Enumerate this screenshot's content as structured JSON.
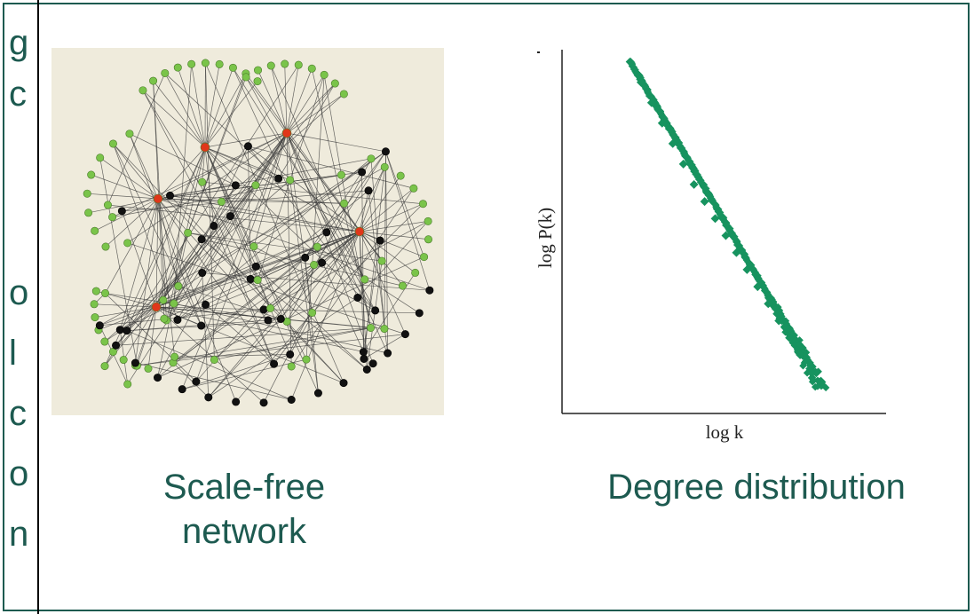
{
  "captions": {
    "network": [
      "Scale-free",
      "network"
    ],
    "distribution": "Degree distribution"
  },
  "edge_fragments": [
    "g",
    "c",
    "o",
    "l",
    "c",
    "o",
    "n"
  ],
  "colors": {
    "frame": "#1d5a50",
    "caption": "#1d5a50",
    "network_bg": "#efebdc",
    "hub_node": "#e0361a",
    "green_node": "#7ac44a",
    "black_node": "#111111",
    "series": "#17935f"
  },
  "chart_data": {
    "type": "scatter",
    "xlabel": "log k",
    "ylabel": "log P(k)",
    "x_scale": "log",
    "y_scale": "log",
    "grid": false,
    "legend": "none",
    "series": [
      {
        "color": "#17935f",
        "trend": "power-law (straight line on log-log axes, negative slope), scatter widening at high k",
        "x": [
          0.05,
          0.1,
          0.15,
          0.2,
          0.25,
          0.3,
          0.35,
          0.4,
          0.45,
          0.5,
          0.55,
          0.6,
          0.65,
          0.7,
          0.75,
          0.8,
          0.85,
          0.9,
          0.95
        ],
        "y": [
          0.98,
          0.92,
          0.86,
          0.8,
          0.74,
          0.68,
          0.62,
          0.57,
          0.52,
          0.47,
          0.42,
          0.37,
          0.32,
          0.27,
          0.22,
          0.17,
          0.12,
          0.07,
          0.03
        ]
      }
    ]
  }
}
